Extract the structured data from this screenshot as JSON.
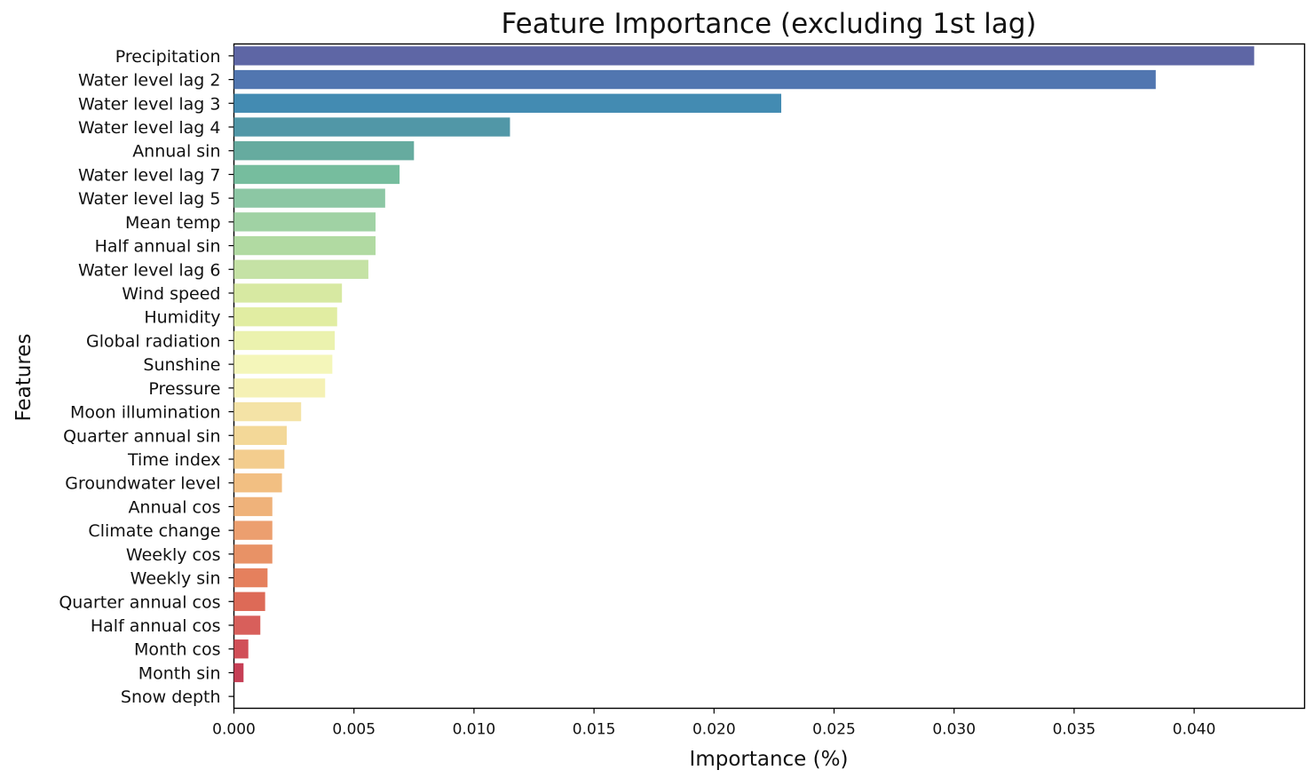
{
  "chart_data": {
    "type": "bar",
    "orientation": "horizontal",
    "title": "Feature Importance (excluding 1st lag)",
    "xlabel": "Importance (%)",
    "ylabel": "Features",
    "xlim": [
      0,
      0.0446
    ],
    "xticks": [
      "0.000",
      "0.005",
      "0.010",
      "0.015",
      "0.020",
      "0.025",
      "0.030",
      "0.035",
      "0.040"
    ],
    "grid": false,
    "legend": "none",
    "palette": "Spectral_r",
    "categories": [
      "Precipitation",
      "Water level lag 2",
      "Water level lag 3",
      "Water level lag 4",
      "Annual sin",
      "Water level lag 7",
      "Water level lag 5",
      "Mean temp",
      "Half annual sin",
      "Water level lag 6",
      "Wind speed",
      "Humidity",
      "Global radiation",
      "Sunshine",
      "Pressure",
      "Moon illumination",
      "Quarter annual sin",
      "Time index",
      "Groundwater level",
      "Annual cos",
      "Climate change",
      "Weekly cos",
      "Weekly sin",
      "Quarter annual cos",
      "Half annual cos",
      "Month cos",
      "Month sin",
      "Snow depth"
    ],
    "values": [
      0.0425,
      0.0384,
      0.0228,
      0.0115,
      0.0075,
      0.0069,
      0.0063,
      0.0059,
      0.0059,
      0.0056,
      0.0045,
      0.0043,
      0.0042,
      0.0041,
      0.0038,
      0.0028,
      0.0022,
      0.0021,
      0.002,
      0.0016,
      0.0016,
      0.0016,
      0.0014,
      0.0013,
      0.0011,
      0.0006,
      0.0004,
      0.0
    ],
    "colors": [
      "#5e66a5",
      "#5176b0",
      "#438bb2",
      "#5197a7",
      "#66ab9f",
      "#76bd9e",
      "#8cc7a4",
      "#a0d2a4",
      "#b1daa2",
      "#c5e2a5",
      "#d7e9a2",
      "#e1eda2",
      "#ebf2ae",
      "#f4f6ba",
      "#f5f1b5",
      "#f4e3a6",
      "#f3d898",
      "#f3cd8e",
      "#f2bf82",
      "#efb27a",
      "#ec9f6f",
      "#e89266",
      "#e5805d",
      "#dd6a57",
      "#d85f5b",
      "#d14f58",
      "#c63f55",
      "#bf3551"
    ]
  }
}
